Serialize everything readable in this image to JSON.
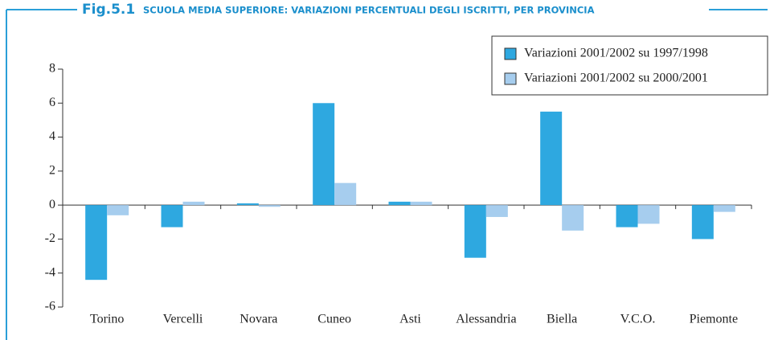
{
  "chart_data": {
    "type": "bar",
    "figure": "Fig.5.1",
    "title": "SCUOLA MEDIA SUPERIORE: VARIAZIONI PERCENTUALI DEGLI ISCRITTI, PER PROVINCIA",
    "categories": [
      "Torino",
      "Vercelli",
      "Novara",
      "Cuneo",
      "Asti",
      "Alessandria",
      "Biella",
      "V.C.O.",
      "Piemonte"
    ],
    "series": [
      {
        "name": "Variazioni 2001/2002 su 1997/1998",
        "color": "#2ea8e0",
        "values": [
          -4.4,
          -1.3,
          0.1,
          6.0,
          0.2,
          -3.1,
          5.5,
          -1.3,
          -2.0
        ]
      },
      {
        "name": "Variazioni 2001/2002 su 2000/2001",
        "color": "#a6cdee",
        "values": [
          -0.6,
          0.2,
          -0.1,
          1.3,
          0.2,
          -0.7,
          -1.5,
          -1.1,
          -0.4
        ]
      }
    ],
    "ylim": [
      -6,
      8
    ],
    "yticks": [
      -6,
      -4,
      -2,
      0,
      2,
      4,
      6,
      8
    ],
    "legend": "top-right"
  }
}
